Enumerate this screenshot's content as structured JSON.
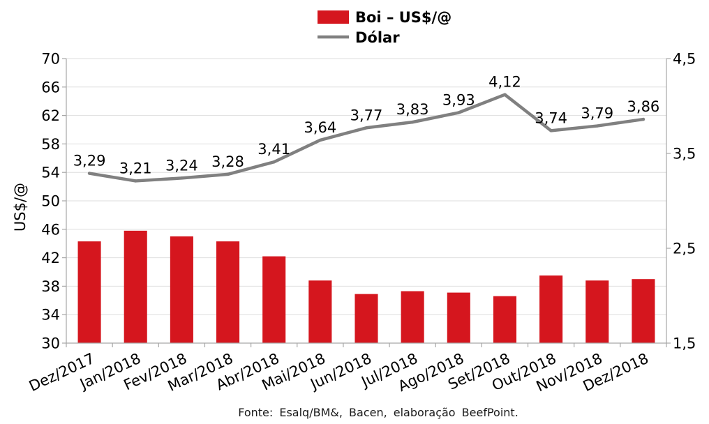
{
  "chart_data": {
    "type": "bar",
    "categories": [
      "Dez/2017",
      "Jan/2018",
      "Fev/2018",
      "Mar/2018",
      "Abr/2018",
      "Mai/2018",
      "Jun/2018",
      "Jul/2018",
      "Ago/2018",
      "Set/2018",
      "Out/2018",
      "Nov/2018",
      "Dez/2018"
    ],
    "series": [
      {
        "name": "Boi – US$/@",
        "type": "bar",
        "axis": "left",
        "color": "#d5161e",
        "values": [
          44.3,
          45.8,
          45.0,
          44.3,
          42.2,
          38.8,
          36.9,
          37.3,
          37.1,
          36.6,
          39.5,
          38.8,
          39.0
        ]
      },
      {
        "name": "Dólar",
        "type": "line",
        "axis": "right",
        "color": "#808080",
        "values": [
          3.29,
          3.21,
          3.24,
          3.28,
          3.41,
          3.64,
          3.77,
          3.83,
          3.93,
          4.12,
          3.74,
          3.79,
          3.86
        ],
        "data_labels": [
          "3,29",
          "3,21",
          "3,24",
          "3,28",
          "3,41",
          "3,64",
          "3,77",
          "3,83",
          "3,93",
          "4,12",
          "3,74",
          "3,79",
          "3,86"
        ]
      }
    ],
    "xlabel": "",
    "ylabel": "US$/@",
    "ylim": [
      30,
      70
    ],
    "yticks": [
      30,
      34,
      38,
      42,
      46,
      50,
      54,
      58,
      62,
      66,
      70
    ],
    "y2lim": [
      1.5,
      4.5
    ],
    "y2ticks": [
      1.5,
      2.5,
      3.5,
      4.5
    ],
    "y2tick_labels": [
      "1,5",
      "2,5",
      "3,5",
      "4,5"
    ],
    "grid": true,
    "legend": "top-center",
    "source": "Fonte: Esalq/BM&, Bacen, elaboração BeefPoint."
  }
}
